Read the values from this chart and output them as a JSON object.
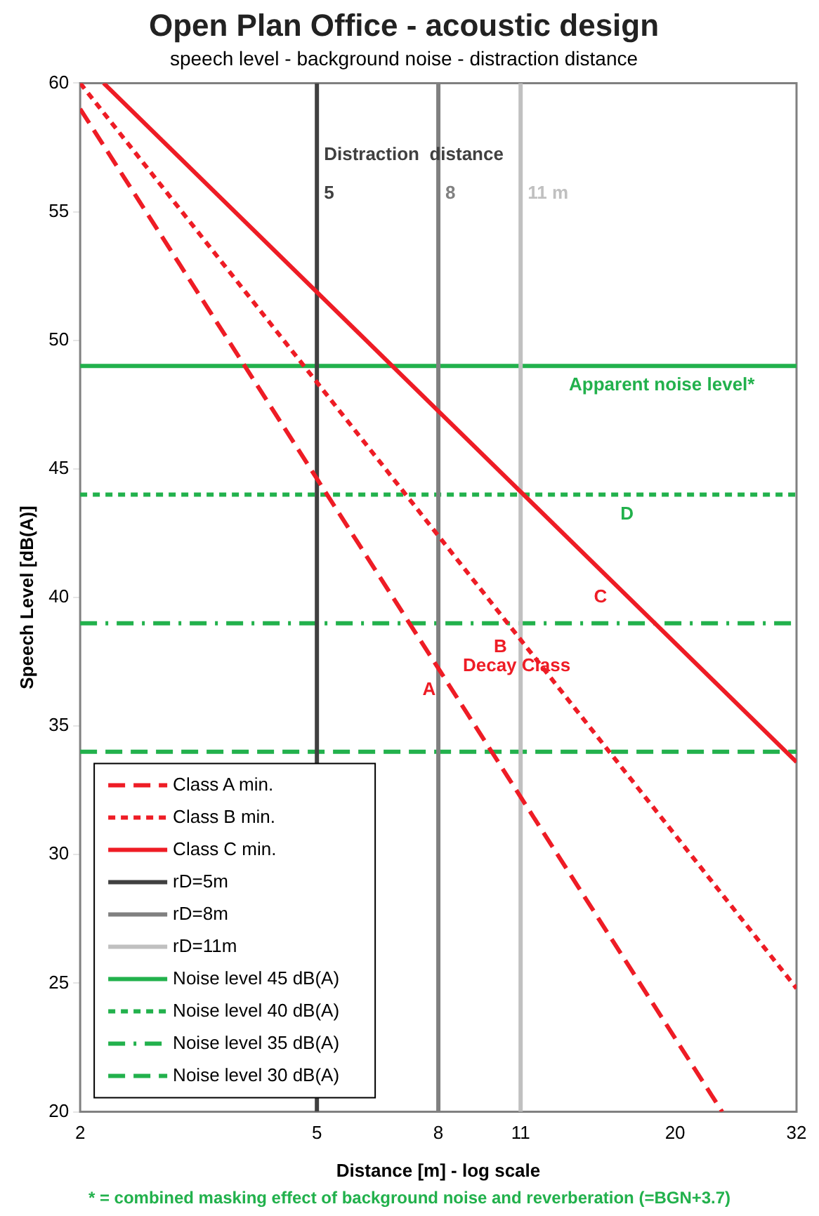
{
  "chart_data": {
    "type": "line",
    "title": "Open Plan Office - acoustic design",
    "subtitle": "speech level - background noise - distraction distance",
    "xlabel": "Distance [m] - log scale",
    "ylabel": "Speech Level [dB(A)]",
    "log": "x",
    "xlim": [
      2,
      32
    ],
    "xticks": [
      2,
      5,
      8,
      11,
      20,
      32
    ],
    "ylim": [
      20,
      60
    ],
    "yticks": [
      20,
      25,
      30,
      35,
      40,
      45,
      50,
      55,
      60
    ],
    "grid": false,
    "legend": "bottom left",
    "marker": "none",
    "series": [
      {
        "name": "Class A min.",
        "color": "#ee1c25",
        "line_style": "dashed",
        "x": [
          2,
          24
        ],
        "values": [
          59,
          20
        ]
      },
      {
        "name": "Class B min.",
        "color": "#ee1c25",
        "line_style": "dotted",
        "x": [
          2,
          32
        ],
        "values": [
          60,
          24.8
        ]
      },
      {
        "name": "Class C min.",
        "color": "#ee1c25",
        "line_style": "solid",
        "x": [
          2.19,
          32
        ],
        "values": [
          60,
          33.6
        ]
      },
      {
        "name": "rD=5m",
        "color": "#404040",
        "line_style": "solid",
        "x": [
          5,
          5
        ],
        "values": [
          20,
          60
        ]
      },
      {
        "name": "rD=8m",
        "color": "#808080",
        "line_style": "solid",
        "x": [
          8,
          8
        ],
        "values": [
          20,
          60
        ]
      },
      {
        "name": "rD=11m",
        "color": "#c0c0c0",
        "line_style": "solid",
        "x": [
          11,
          11
        ],
        "values": [
          20,
          60
        ]
      },
      {
        "name": "Noise level 45 dB(A)",
        "color": "#22b14c",
        "line_style": "solid",
        "x": [
          2,
          32
        ],
        "values": [
          49,
          49
        ]
      },
      {
        "name": "Noise level 40 dB(A)",
        "color": "#22b14c",
        "line_style": "dotted",
        "x": [
          2,
          32
        ],
        "values": [
          44,
          44
        ]
      },
      {
        "name": "Noise level 35 dB(A)",
        "color": "#22b14c",
        "line_style": "dashdot",
        "x": [
          2,
          32
        ],
        "values": [
          39,
          39
        ]
      },
      {
        "name": "Noise level 30 dB(A)",
        "color": "#22b14c",
        "line_style": "dashed",
        "x": [
          2,
          32
        ],
        "values": [
          34,
          34
        ]
      }
    ],
    "annotations": [
      {
        "text": "Distraction  distance",
        "x": 5,
        "y": 57.2
      },
      {
        "text": "5",
        "x": 5,
        "y": 55.7
      },
      {
        "text": "8",
        "x": 8,
        "y": 55.7
      },
      {
        "text": "11 m",
        "x": 11,
        "y": 55.7
      },
      {
        "text": "Apparent noise level*",
        "x": 19,
        "y": 49
      },
      {
        "text": "A",
        "x": 8.23,
        "y": 36.8
      },
      {
        "text": "B",
        "x": 10.8,
        "y": 38.55
      },
      {
        "text": "C",
        "x": 15.8,
        "y": 40.56
      },
      {
        "text": "Decay Class",
        "x": 11.5,
        "y": 37.8
      },
      {
        "text": "D",
        "x": 16.6,
        "y": 44
      },
      "* = combined masking effect of background noise and reverberation (=BGN+3.7)"
    ]
  }
}
